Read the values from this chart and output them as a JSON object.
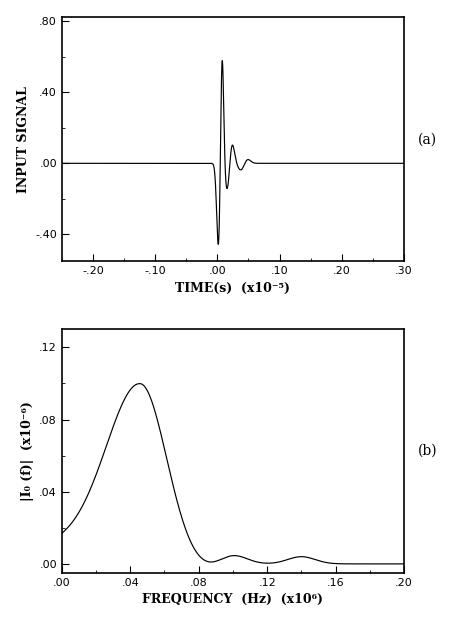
{
  "fig_width": 4.74,
  "fig_height": 6.23,
  "dpi": 100,
  "background_color": "#ffffff",
  "line_color": "#000000",
  "panel_a": {
    "xlabel": "TIME(s)  (x10⁻⁵)",
    "ylabel": "INPUT SIGNAL",
    "xlim": [
      -0.25,
      0.3
    ],
    "ylim": [
      -0.55,
      0.82
    ],
    "xticks": [
      -0.2,
      -0.1,
      0.0,
      0.1,
      0.2,
      0.3
    ],
    "yticks": [
      -0.4,
      0.0,
      0.4,
      0.8
    ],
    "label": "(a)"
  },
  "panel_b": {
    "xlabel": "FREQUENCY  (Hz)  (x10⁶)",
    "ylabel": "|I₀ (f)|  (x10⁻⁶)",
    "xlim": [
      0.0,
      0.2
    ],
    "ylim": [
      -0.005,
      0.13
    ],
    "xticks": [
      0.0,
      0.04,
      0.08,
      0.12,
      0.16,
      0.2
    ],
    "yticks": [
      0.0,
      0.04,
      0.08,
      0.12
    ],
    "label": "(b)"
  }
}
